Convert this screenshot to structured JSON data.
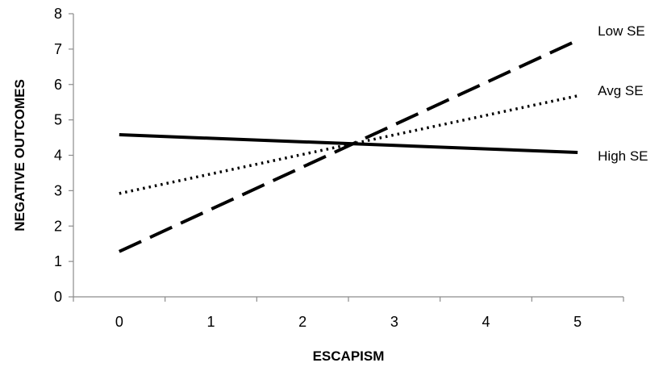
{
  "chart_data": {
    "type": "line",
    "title": "",
    "xlabel": "ESCAPISM",
    "ylabel": "NEGATIVE OUTCOMES",
    "xlim": [
      0,
      5
    ],
    "ylim": [
      0,
      8
    ],
    "x_categories": [
      "0",
      "1",
      "2",
      "3",
      "4",
      "5"
    ],
    "y_ticks": [
      "0",
      "1",
      "2",
      "3",
      "4",
      "5",
      "6",
      "7",
      "8"
    ],
    "grid": false,
    "series": [
      {
        "name": "Low SE",
        "style": "dashed",
        "x": [
          0,
          5
        ],
        "y": [
          1.28,
          7.25
        ]
      },
      {
        "name": "Avg SE",
        "style": "dotted",
        "x": [
          0,
          5
        ],
        "y": [
          2.92,
          5.68
        ]
      },
      {
        "name": "High SE",
        "style": "solid",
        "x": [
          0,
          5
        ],
        "y": [
          4.58,
          4.08
        ]
      }
    ],
    "colors": {
      "line": "#000000",
      "axis": "#8c8c8c"
    }
  }
}
